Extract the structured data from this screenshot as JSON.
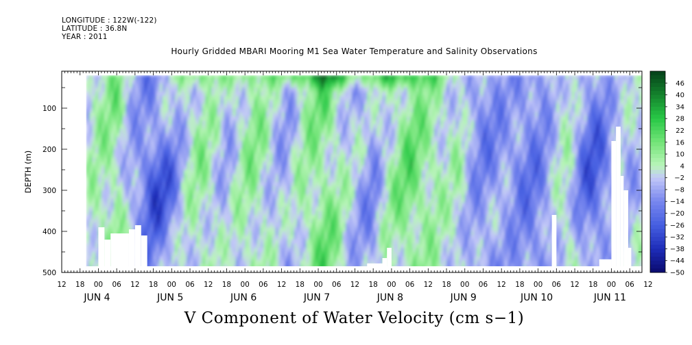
{
  "header": {
    "longitude": "LONGITUDE : 122W(-122)",
    "latitude": "LATITUDE : 36.8N",
    "year": "YEAR : 2011"
  },
  "chart_data": {
    "type": "heatmap",
    "title": "Hourly Gridded MBARI Mooring M1 Sea Water Temperature and Salinity Observations",
    "xlabel": "V Component of Water Velocity (cm s−1)",
    "ylabel": "DEPTH (m)",
    "ylim": [
      500,
      10
    ],
    "y_ticks": [
      100,
      200,
      300,
      400,
      500
    ],
    "x_range_hours_since_jun3_12": [
      0,
      190
    ],
    "x_hour_tick_labels": [
      "12",
      "18",
      "00",
      "06",
      "12",
      "18",
      "00",
      "06",
      "12",
      "18",
      "00",
      "06",
      "12",
      "18",
      "00",
      "06",
      "12",
      "18",
      "00",
      "06",
      "12",
      "18",
      "00",
      "06",
      "12",
      "18",
      "00",
      "06",
      "12",
      "18",
      "00",
      "06",
      "12"
    ],
    "x_day_labels": [
      "JUN  4",
      "JUN  5",
      "JUN  6",
      "JUN  7",
      "JUN  8",
      "JUN  9",
      "JUN 10",
      "JUN 11"
    ],
    "colorbar_levels": [
      46,
      40,
      34,
      28,
      22,
      16,
      10,
      4,
      -2,
      -8,
      -14,
      -20,
      -26,
      -32,
      -38,
      -44,
      -50
    ],
    "colorbar_labels": [
      "46",
      "40",
      "34",
      "28",
      "22",
      "16",
      "10",
      "4",
      "−2",
      "−8",
      "−14",
      "−20",
      "−26",
      "−32",
      "−38",
      "−44",
      "−50"
    ],
    "colors": {
      "strong_positive": "#0a4a1e",
      "positive": "#2ecc55",
      "near_zero_pos": "#b8f0b8",
      "near_zero_neg": "#c8ccf5",
      "negative": "#7f8cf0",
      "strong_negative": "#0a0a6e",
      "missing": "#ffffff"
    }
  }
}
